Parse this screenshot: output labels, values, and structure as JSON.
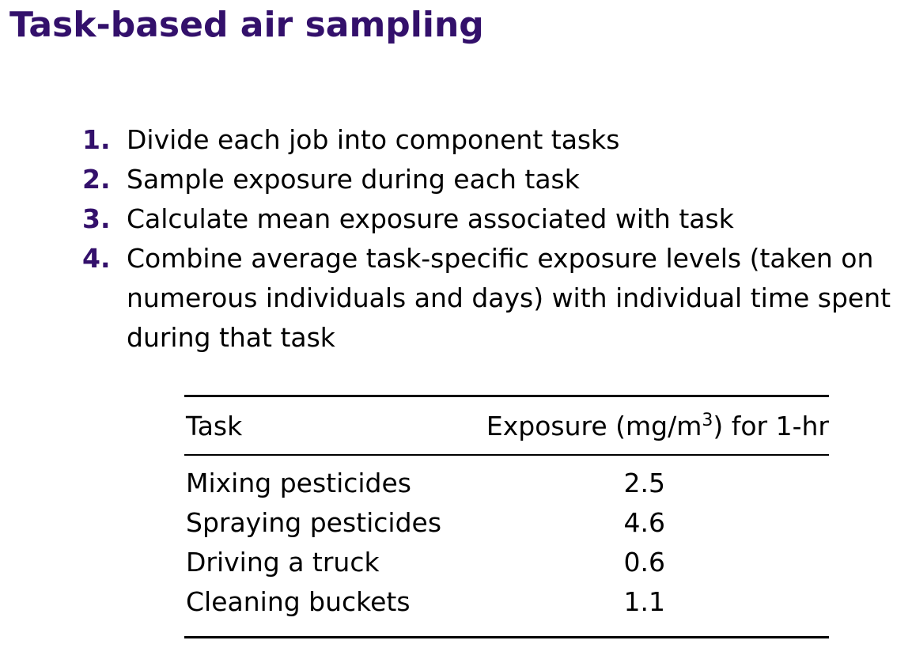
{
  "slide": {
    "title": "Task-based air sampling"
  },
  "steps": [
    {
      "number": "1.",
      "text": "Divide each job into component tasks"
    },
    {
      "number": "2.",
      "text": "Sample exposure during each task"
    },
    {
      "number": "3.",
      "text": "Calculate mean exposure associated with task"
    },
    {
      "number": "4.",
      "text": "Combine average task-specific exposure levels (taken on numerous individuals and days) with individual time spent during that task"
    }
  ],
  "colors": {
    "accent": "#33106b",
    "text": "#000000",
    "background": "#ffffff"
  },
  "table": {
    "headers": {
      "task": "Task",
      "exposure_prefix": "Exposure (mg/m",
      "exposure_superscript": "3",
      "exposure_suffix": ") for 1-hr"
    },
    "rows": [
      {
        "task": "Mixing pesticides",
        "exposure": "2.5"
      },
      {
        "task": "Spraying pesticides",
        "exposure": "4.6"
      },
      {
        "task": "Driving a truck",
        "exposure": "0.6"
      },
      {
        "task": "Cleaning buckets",
        "exposure": "1.1"
      }
    ]
  }
}
